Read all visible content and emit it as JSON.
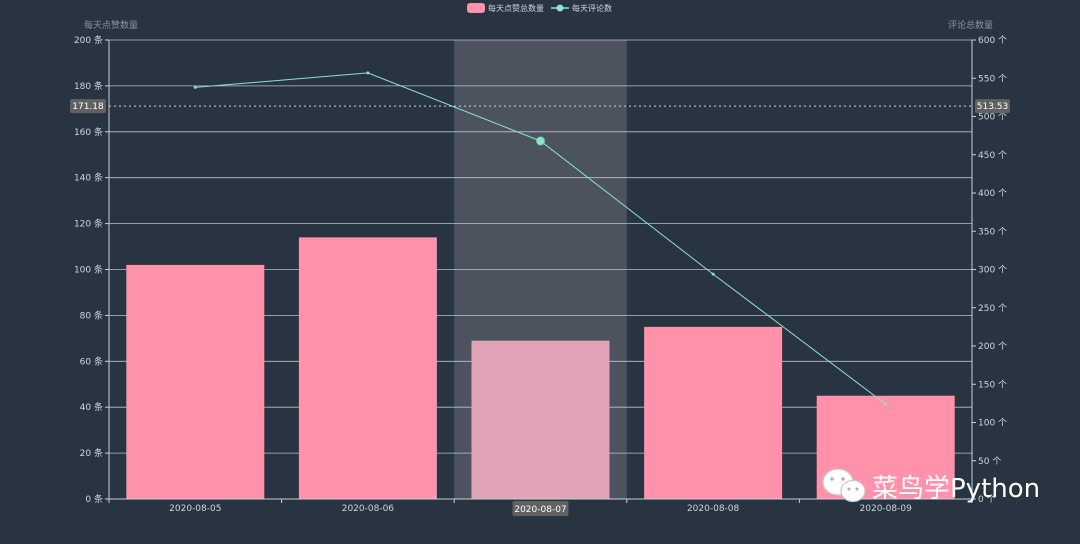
{
  "chart_data": {
    "type": "bar",
    "categories": [
      "2020-08-05",
      "2020-08-06",
      "2020-08-07",
      "2020-08-08",
      "2020-08-09"
    ],
    "series": [
      {
        "name": "每天点赞总数量",
        "type": "bar",
        "axis": "left",
        "values": [
          102,
          114,
          69,
          75,
          45
        ],
        "color": "#ff91ab"
      },
      {
        "name": "每天评论数",
        "type": "line",
        "axis": "right",
        "values": [
          538,
          557,
          468,
          294,
          124
        ],
        "color": "#8ee3c8"
      }
    ],
    "y_left": {
      "label": "每天点赞数量",
      "range": [
        0,
        200
      ],
      "ticks": [
        "0 条",
        "20 条",
        "40 条",
        "60 条",
        "80 条",
        "100 条",
        "120 条",
        "140 条",
        "160 条",
        "180 条",
        "200 条"
      ]
    },
    "y_right": {
      "label": "评论总数量",
      "range": [
        0,
        600
      ],
      "ticks": [
        "0 个",
        "50 个",
        "100 个",
        "150 个",
        "200 个",
        "250 个",
        "300 个",
        "350 个",
        "400 个",
        "450 个",
        "500 个",
        "550 个",
        "600 个"
      ]
    },
    "crosshair": {
      "category": "2020-08-07",
      "category_label": "2020-08-07",
      "left_value": 171.18,
      "left_label": "171.18",
      "right_label": "513.53"
    },
    "legend_placement": "top-center",
    "grid": true
  },
  "watermark": {
    "text": "菜鸟学Python"
  },
  "colors": {
    "background": "#283441",
    "axis": "#c9d1d9",
    "grid": "#c9d1d9",
    "bar": "#ff91ab",
    "bar_highlight": "#e0a4b6",
    "line": "#8ee3c8",
    "shadow": "#4c535e",
    "label_box": "#616161",
    "muted_text": "#8a939e",
    "tick_text": "#cfd6dd"
  }
}
